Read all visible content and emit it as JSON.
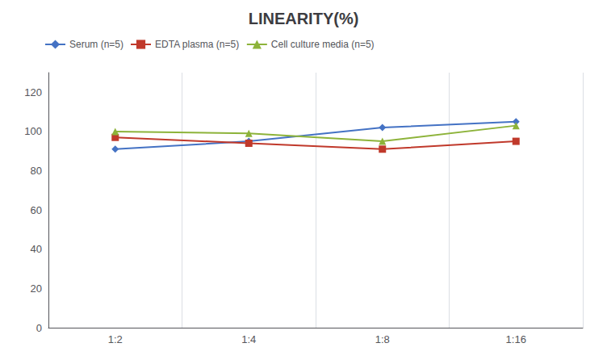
{
  "chart_data": {
    "type": "line",
    "title": "LINEARITY(%)",
    "categories": [
      "1:2",
      "1:4",
      "1:8",
      "1:16"
    ],
    "series": [
      {
        "name": "Serum (n=5)",
        "color": "#4472C4",
        "marker": "diamond",
        "values": [
          91,
          95,
          102,
          105
        ]
      },
      {
        "name": "EDTA plasma (n=5)",
        "color": "#C0392B",
        "marker": "square",
        "values": [
          97,
          94,
          91,
          95
        ]
      },
      {
        "name": "Cell culture media (n=5)",
        "color": "#8DB33A",
        "marker": "triangle",
        "values": [
          100,
          99,
          95,
          103
        ]
      }
    ],
    "ylim": [
      0,
      130
    ],
    "yticks": [
      0,
      20,
      40,
      60,
      80,
      100,
      120
    ],
    "grid": true,
    "legend": "upper left"
  }
}
